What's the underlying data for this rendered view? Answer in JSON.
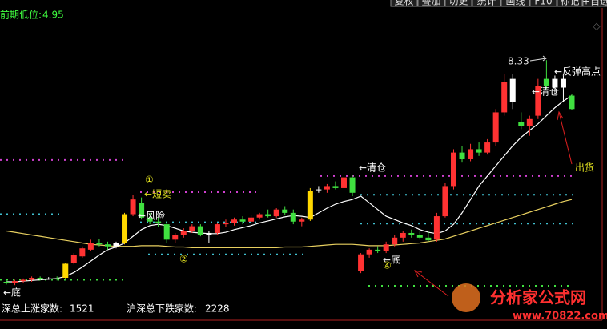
{
  "chart_data": {
    "type": "candlestick",
    "header": {
      "label": "前期低位:",
      "value": 4.95,
      "color": "#40ff40"
    },
    "toolbar": [
      "复权",
      "叠加",
      "切史",
      "统计",
      "画线",
      "F10",
      "标记",
      "+自选"
    ],
    "ylim": [
      4.47,
      9.11
    ],
    "up_color": "#ff3232",
    "down_color": "#40e040",
    "candles": [
      {
        "open": 5.02,
        "high": 5.06,
        "low": 4.98,
        "close": 5.0,
        "color": "#40e040"
      },
      {
        "open": 5.0,
        "high": 5.05,
        "low": 4.97,
        "close": 5.03,
        "color": "#ff3232"
      },
      {
        "open": 5.03,
        "high": 5.07,
        "low": 5.0,
        "close": 5.05,
        "color": "#ff3232"
      },
      {
        "open": 5.05,
        "high": 5.1,
        "low": 5.02,
        "close": 5.08,
        "color": "#ff3232"
      },
      {
        "open": 5.08,
        "high": 5.1,
        "low": 5.04,
        "close": 5.07,
        "color": "#40e040"
      },
      {
        "open": 5.07,
        "high": 5.09,
        "low": 5.05,
        "close": 5.07,
        "color": "#ffffff"
      },
      {
        "open": 5.07,
        "high": 5.1,
        "low": 5.04,
        "close": 5.06,
        "color": "#40e040"
      },
      {
        "open": 5.08,
        "high": 5.3,
        "low": 5.07,
        "close": 5.29,
        "color": "#ffd800"
      },
      {
        "open": 5.3,
        "high": 5.45,
        "low": 5.28,
        "close": 5.42,
        "color": "#ff3232"
      },
      {
        "open": 5.4,
        "high": 5.55,
        "low": 5.38,
        "close": 5.52,
        "color": "#ff3232"
      },
      {
        "open": 5.5,
        "high": 5.65,
        "low": 5.48,
        "close": 5.6,
        "color": "#ff3232"
      },
      {
        "open": 5.6,
        "high": 5.66,
        "low": 5.55,
        "close": 5.58,
        "color": "#40e040"
      },
      {
        "open": 5.58,
        "high": 5.62,
        "low": 5.5,
        "close": 5.55,
        "color": "#40e040"
      },
      {
        "open": 5.55,
        "high": 5.62,
        "low": 5.52,
        "close": 5.6,
        "color": "#ffffff"
      },
      {
        "open": 5.6,
        "high": 6.05,
        "low": 5.58,
        "close": 6.03,
        "color": "#ffd800"
      },
      {
        "open": 6.03,
        "high": 6.32,
        "low": 6.0,
        "close": 6.25,
        "color": "#ff3232"
      },
      {
        "open": 6.2,
        "high": 6.28,
        "low": 5.95,
        "close": 5.98,
        "color": "#40e040"
      },
      {
        "open": 5.98,
        "high": 6.05,
        "low": 5.88,
        "close": 5.92,
        "color": "#40e040"
      },
      {
        "open": 5.92,
        "high": 5.98,
        "low": 5.84,
        "close": 5.9,
        "color": "#40e040"
      },
      {
        "open": 5.88,
        "high": 5.92,
        "low": 5.6,
        "close": 5.65,
        "color": "#40e040"
      },
      {
        "open": 5.65,
        "high": 5.75,
        "low": 5.6,
        "close": 5.72,
        "color": "#ff3232"
      },
      {
        "open": 5.72,
        "high": 5.82,
        "low": 5.68,
        "close": 5.78,
        "color": "#ff3232"
      },
      {
        "open": 5.78,
        "high": 5.88,
        "low": 5.75,
        "close": 5.85,
        "color": "#ff3232"
      },
      {
        "open": 5.85,
        "high": 5.88,
        "low": 5.7,
        "close": 5.72,
        "color": "#40e040"
      },
      {
        "open": 5.72,
        "high": 5.78,
        "low": 5.6,
        "close": 5.75,
        "color": "#ffffff"
      },
      {
        "open": 5.75,
        "high": 5.9,
        "low": 5.72,
        "close": 5.88,
        "color": "#ff3232"
      },
      {
        "open": 5.88,
        "high": 5.95,
        "low": 5.84,
        "close": 5.9,
        "color": "#ff3232"
      },
      {
        "open": 5.9,
        "high": 5.98,
        "low": 5.86,
        "close": 5.95,
        "color": "#ff3232"
      },
      {
        "open": 5.95,
        "high": 6.0,
        "low": 5.88,
        "close": 5.92,
        "color": "#40e040"
      },
      {
        "open": 5.92,
        "high": 6.02,
        "low": 5.9,
        "close": 5.98,
        "color": "#ff3232"
      },
      {
        "open": 5.98,
        "high": 6.05,
        "low": 5.95,
        "close": 6.03,
        "color": "#ff3232"
      },
      {
        "open": 6.03,
        "high": 6.1,
        "low": 5.98,
        "close": 6.0,
        "color": "#40e040"
      },
      {
        "open": 6.0,
        "high": 6.12,
        "low": 5.98,
        "close": 6.1,
        "color": "#ff3232"
      },
      {
        "open": 6.1,
        "high": 6.15,
        "low": 6.02,
        "close": 6.05,
        "color": "#40e040"
      },
      {
        "open": 6.05,
        "high": 6.1,
        "low": 5.88,
        "close": 5.92,
        "color": "#40e040"
      },
      {
        "open": 5.92,
        "high": 5.98,
        "low": 5.85,
        "close": 5.95,
        "color": "#ff3232"
      },
      {
        "open": 5.95,
        "high": 6.42,
        "low": 5.93,
        "close": 6.38,
        "color": "#ffd800"
      },
      {
        "open": 6.4,
        "high": 6.45,
        "low": 6.35,
        "close": 6.4,
        "color": "#ffffff"
      },
      {
        "open": 6.4,
        "high": 6.48,
        "low": 6.35,
        "close": 6.45,
        "color": "#ff3232"
      },
      {
        "open": 6.45,
        "high": 6.52,
        "low": 6.4,
        "close": 6.42,
        "color": "#40e040"
      },
      {
        "open": 6.42,
        "high": 6.62,
        "low": 6.4,
        "close": 6.58,
        "color": "#ff3232"
      },
      {
        "open": 6.58,
        "high": 6.62,
        "low": 6.3,
        "close": 6.35,
        "color": "#40e040"
      },
      {
        "open": 5.18,
        "high": 5.45,
        "low": 5.15,
        "close": 5.43,
        "color": "#ff3232"
      },
      {
        "open": 5.43,
        "high": 5.52,
        "low": 5.38,
        "close": 5.5,
        "color": "#ff3232"
      },
      {
        "open": 5.5,
        "high": 5.55,
        "low": 5.45,
        "close": 5.48,
        "color": "#40e040"
      },
      {
        "open": 5.48,
        "high": 5.62,
        "low": 5.45,
        "close": 5.58,
        "color": "#ff3232"
      },
      {
        "open": 5.58,
        "high": 5.72,
        "low": 5.55,
        "close": 5.68,
        "color": "#ff3232"
      },
      {
        "open": 5.68,
        "high": 5.78,
        "low": 5.62,
        "close": 5.75,
        "color": "#ff3232"
      },
      {
        "open": 5.75,
        "high": 5.8,
        "low": 5.68,
        "close": 5.72,
        "color": "#40e040"
      },
      {
        "open": 5.72,
        "high": 5.78,
        "low": 5.65,
        "close": 5.68,
        "color": "#40e040"
      },
      {
        "open": 5.68,
        "high": 5.78,
        "low": 5.62,
        "close": 5.64,
        "color": "#40e040"
      },
      {
        "open": 5.65,
        "high": 6.05,
        "low": 5.62,
        "close": 6.0,
        "color": "#ff3232"
      },
      {
        "open": 6.0,
        "high": 6.5,
        "low": 5.98,
        "close": 6.45,
        "color": "#ff3232"
      },
      {
        "open": 6.45,
        "high": 7.0,
        "low": 6.4,
        "close": 6.95,
        "color": "#ff3232"
      },
      {
        "open": 6.95,
        "high": 7.05,
        "low": 6.8,
        "close": 6.85,
        "color": "#40e040"
      },
      {
        "open": 6.85,
        "high": 7.08,
        "low": 6.82,
        "close": 7.0,
        "color": "#ff3232"
      },
      {
        "open": 7.0,
        "high": 7.1,
        "low": 6.9,
        "close": 6.95,
        "color": "#40e040"
      },
      {
        "open": 6.95,
        "high": 7.15,
        "low": 6.92,
        "close": 7.1,
        "color": "#ff3232"
      },
      {
        "open": 7.1,
        "high": 7.6,
        "low": 7.05,
        "close": 7.55,
        "color": "#ff3232"
      },
      {
        "open": 7.55,
        "high": 8.12,
        "low": 7.5,
        "close": 8.0,
        "color": "#ff3232"
      },
      {
        "open": 7.7,
        "high": 8.12,
        "low": 7.6,
        "close": 8.05,
        "color": "#ffffff"
      },
      {
        "open": 7.4,
        "high": 7.55,
        "low": 7.3,
        "close": 7.35,
        "color": "#40e040"
      },
      {
        "open": 7.35,
        "high": 7.5,
        "low": 7.2,
        "close": 7.45,
        "color": "#ff3232"
      },
      {
        "open": 7.5,
        "high": 8.05,
        "low": 7.45,
        "close": 7.95,
        "color": "#ff3232"
      },
      {
        "open": 7.95,
        "high": 8.33,
        "low": 7.9,
        "close": 8.05,
        "color": "#40e040"
      },
      {
        "open": 8.05,
        "high": 8.1,
        "low": 7.85,
        "close": 7.92,
        "color": "#ffffff"
      },
      {
        "open": 7.92,
        "high": 8.1,
        "low": 7.7,
        "close": 8.05,
        "color": "#ffffff"
      },
      {
        "open": 7.8,
        "high": 7.82,
        "low": 7.58,
        "close": 7.6,
        "color": "#40e040"
      }
    ],
    "lines": [
      {
        "color": "#ffffff",
        "values": [
          5.02,
          5.02,
          5.03,
          5.04,
          5.05,
          5.06,
          5.07,
          5.1,
          5.16,
          5.24,
          5.33,
          5.42,
          5.5,
          5.54,
          5.6,
          5.7,
          5.8,
          5.86,
          5.88,
          5.86,
          5.82,
          5.78,
          5.76,
          5.75,
          5.74,
          5.74,
          5.76,
          5.8,
          5.83,
          5.86,
          5.9,
          5.93,
          5.96,
          5.99,
          6.01,
          6.0,
          5.98,
          6.05,
          6.12,
          6.18,
          6.22,
          6.25,
          6.3,
          6.2,
          6.1,
          6.0,
          5.95,
          5.9,
          5.86,
          5.8,
          5.76,
          5.74,
          5.78,
          5.88,
          6.05,
          6.25,
          6.45,
          6.6,
          6.75,
          6.9,
          7.05,
          7.18,
          7.28,
          7.38,
          7.5,
          7.62,
          7.72,
          7.8
        ]
      },
      {
        "color": "#e8d060",
        "values": [
          5.78,
          5.76,
          5.74,
          5.72,
          5.7,
          5.68,
          5.66,
          5.64,
          5.62,
          5.6,
          5.58,
          5.57,
          5.56,
          5.55,
          5.55,
          5.55,
          5.56,
          5.56,
          5.56,
          5.55,
          5.54,
          5.54,
          5.53,
          5.53,
          5.53,
          5.53,
          5.53,
          5.53,
          5.53,
          5.53,
          5.53,
          5.53,
          5.53,
          5.54,
          5.54,
          5.54,
          5.55,
          5.56,
          5.57,
          5.58,
          5.58,
          5.58,
          5.57,
          5.56,
          5.56,
          5.56,
          5.57,
          5.58,
          5.59,
          5.6,
          5.62,
          5.64,
          5.66,
          5.7,
          5.74,
          5.78,
          5.82,
          5.86,
          5.9,
          5.94,
          5.98,
          6.02,
          6.06,
          6.1,
          6.14,
          6.18,
          6.22,
          6.25
        ]
      }
    ],
    "levels": [
      {
        "value": 6.84,
        "color": "#d040d0"
      },
      {
        "value": 6.03,
        "color": "#40c0d0"
      },
      {
        "value": 5.05,
        "color": "#40e040"
      },
      {
        "value": 6.36,
        "color": "#d040d0"
      },
      {
        "value": 5.91,
        "color": "#40c0d0"
      },
      {
        "value": 5.43,
        "color": "#40c0d0"
      },
      {
        "value": 6.6,
        "color": "#d040d0"
      },
      {
        "value": 6.32,
        "color": "#40c0d0"
      },
      {
        "value": 5.89,
        "color": "#40c0d0"
      },
      {
        "value": 4.96,
        "color": "#40e040"
      }
    ],
    "annotations": {
      "high_label": "8.33",
      "rebound_high": "←反弹高点",
      "clear1": "←清仓",
      "clear2": "←清仓",
      "ship": "出货",
      "short_sell": "←短卖",
      "risk": "←风险",
      "bottom1": "←底",
      "bottom2": "←底",
      "mark1": "①",
      "mark2": "②",
      "mark4": "④"
    },
    "footer": [
      {
        "label": "深总上涨家数:",
        "value": 1521
      },
      {
        "label": "沪深总下跌家数:",
        "value": 2228
      }
    ],
    "watermark": {
      "name": "分析家公式网",
      "url": "www.70822.com"
    }
  }
}
